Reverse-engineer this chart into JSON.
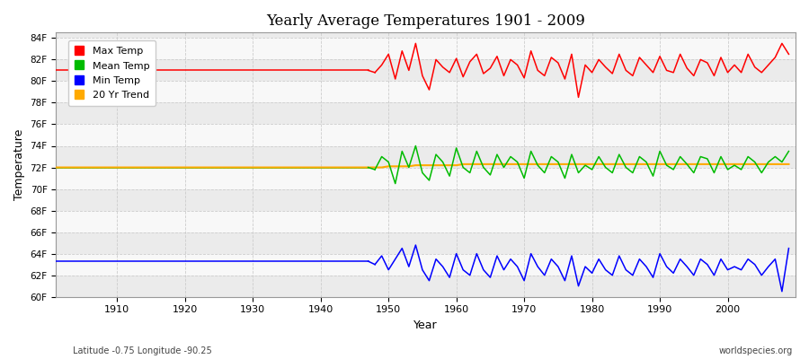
{
  "title": "Yearly Average Temperatures 1901 - 2009",
  "xlabel": "Year",
  "ylabel": "Temperature",
  "subtitle_left": "Latitude -0.75 Longitude -90.25",
  "subtitle_right": "worldspecies.org",
  "ylim": [
    60,
    84.5
  ],
  "yticks": [
    60,
    62,
    64,
    66,
    68,
    70,
    72,
    74,
    76,
    78,
    80,
    82,
    84
  ],
  "ytick_labels": [
    "60F",
    "62F",
    "64F",
    "66F",
    "68F",
    "70F",
    "72F",
    "74F",
    "76F",
    "78F",
    "80F",
    "82F",
    "84F"
  ],
  "xlim": [
    1901,
    2010
  ],
  "xticks": [
    1910,
    1920,
    1930,
    1940,
    1950,
    1960,
    1970,
    1980,
    1990,
    2000
  ],
  "flat_start": 1901,
  "flat_end": 1947,
  "data_start": 1948,
  "data_end": 2009,
  "flat_max": 81.0,
  "flat_mean": 72.0,
  "flat_min": 63.3,
  "flat_trend": 72.0,
  "max_color": "#ff0000",
  "mean_color": "#00bb00",
  "min_color": "#0000ff",
  "trend_color": "#ffaa00",
  "background_color": "#ffffff",
  "plot_bg_color": "#f0f0f0",
  "band_color_light": "#f5f5f5",
  "band_color_dark": "#e8e8e8",
  "grid_color": "#cccccc",
  "legend_labels": [
    "Max Temp",
    "Mean Temp",
    "Min Temp",
    "20 Yr Trend"
  ],
  "max_temps": [
    80.8,
    81.5,
    82.5,
    80.2,
    82.8,
    81.0,
    83.5,
    80.5,
    79.2,
    82.0,
    81.3,
    80.8,
    82.1,
    80.4,
    81.8,
    82.5,
    80.7,
    81.2,
    82.3,
    80.5,
    82.0,
    81.5,
    80.3,
    82.8,
    81.0,
    80.5,
    82.2,
    81.7,
    80.2,
    82.5,
    78.5,
    81.5,
    80.8,
    82.0,
    81.3,
    80.7,
    82.5,
    81.0,
    80.5,
    82.2,
    81.5,
    80.8,
    82.3,
    81.0,
    80.8,
    82.5,
    81.2,
    80.5,
    82.0,
    81.7,
    80.5,
    82.2,
    80.8,
    81.5,
    80.8,
    82.5,
    81.3,
    80.8,
    81.5,
    82.2,
    83.5,
    82.5
  ],
  "mean_temps": [
    71.8,
    73.0,
    72.5,
    70.5,
    73.5,
    72.0,
    74.0,
    71.5,
    70.8,
    73.2,
    72.5,
    71.2,
    73.8,
    72.0,
    71.5,
    73.5,
    72.0,
    71.3,
    73.2,
    72.0,
    73.0,
    72.5,
    71.0,
    73.5,
    72.2,
    71.5,
    73.0,
    72.5,
    71.0,
    73.2,
    71.5,
    72.2,
    71.8,
    73.0,
    72.0,
    71.5,
    73.2,
    72.0,
    71.5,
    73.0,
    72.5,
    71.2,
    73.5,
    72.2,
    71.8,
    73.0,
    72.3,
    71.5,
    73.0,
    72.8,
    71.5,
    73.0,
    71.8,
    72.2,
    71.8,
    73.0,
    72.5,
    71.5,
    72.5,
    73.0,
    72.5,
    73.5
  ],
  "min_temps": [
    63.0,
    63.8,
    62.5,
    63.5,
    64.5,
    62.8,
    64.8,
    62.5,
    61.5,
    63.5,
    62.8,
    61.8,
    64.0,
    62.5,
    62.0,
    64.0,
    62.5,
    61.8,
    63.8,
    62.5,
    63.5,
    62.8,
    61.5,
    64.0,
    62.8,
    62.0,
    63.5,
    62.8,
    61.5,
    63.8,
    61.0,
    62.8,
    62.2,
    63.5,
    62.5,
    62.0,
    63.8,
    62.5,
    62.0,
    63.5,
    62.8,
    61.8,
    64.0,
    62.8,
    62.2,
    63.5,
    62.8,
    62.0,
    63.5,
    63.0,
    62.0,
    63.5,
    62.5,
    62.8,
    62.5,
    63.5,
    63.0,
    62.0,
    62.8,
    63.5,
    60.5,
    64.5
  ],
  "trend_vals_data": [
    72.0,
    72.0,
    72.1,
    72.1,
    72.1,
    72.1,
    72.2,
    72.2,
    72.2,
    72.2,
    72.2,
    72.2,
    72.2,
    72.3,
    72.3,
    72.3,
    72.3,
    72.3,
    72.3,
    72.3,
    72.3,
    72.3,
    72.3,
    72.3,
    72.3,
    72.3,
    72.3,
    72.3,
    72.3,
    72.3,
    72.3,
    72.3,
    72.3,
    72.3,
    72.3,
    72.3,
    72.3,
    72.3,
    72.3,
    72.3,
    72.3,
    72.3,
    72.3,
    72.3,
    72.3,
    72.3,
    72.3,
    72.3,
    72.3,
    72.3,
    72.3,
    72.3,
    72.3,
    72.3,
    72.3,
    72.3,
    72.3,
    72.3,
    72.3,
    72.3,
    72.3,
    72.3
  ]
}
